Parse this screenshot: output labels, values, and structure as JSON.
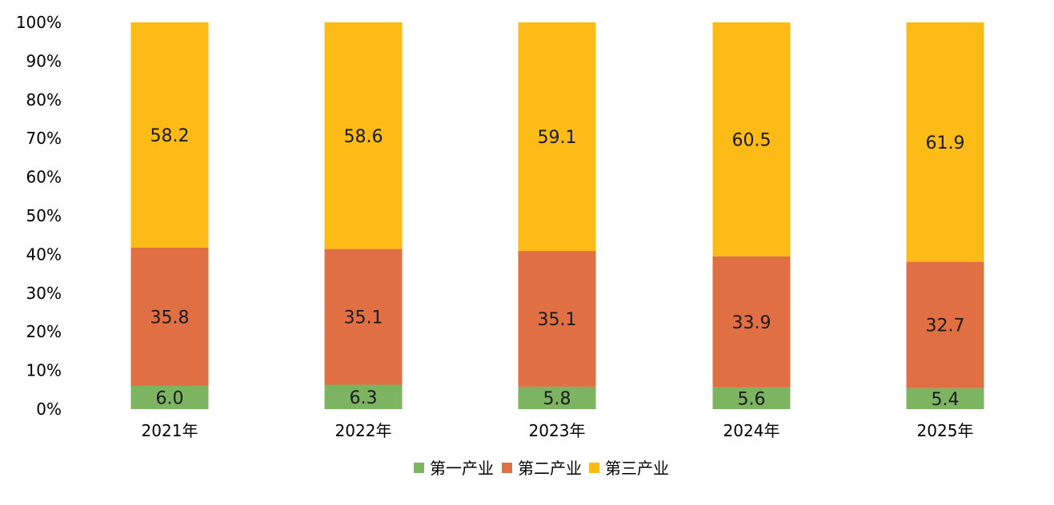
{
  "chart_data": {
    "type": "bar",
    "stacked": true,
    "percent_stacked": true,
    "categories": [
      "2021年",
      "2022年",
      "2023年",
      "2024年",
      "2025年"
    ],
    "series": [
      {
        "name": "第一产业",
        "color": "#7cb462",
        "values": [
          6.0,
          6.3,
          5.8,
          5.6,
          5.4
        ]
      },
      {
        "name": "第二产业",
        "color": "#e07043",
        "values": [
          35.8,
          35.1,
          35.1,
          33.9,
          32.7
        ]
      },
      {
        "name": "第三产业",
        "color": "#fdbb18",
        "values": [
          58.2,
          58.6,
          59.1,
          60.5,
          61.9
        ]
      }
    ],
    "y_ticks": [
      "0%",
      "10%",
      "20%",
      "30%",
      "40%",
      "50%",
      "60%",
      "70%",
      "80%",
      "90%",
      "100%"
    ],
    "ylim": [
      0,
      100
    ],
    "grid": false,
    "legend_position": "bottom"
  }
}
